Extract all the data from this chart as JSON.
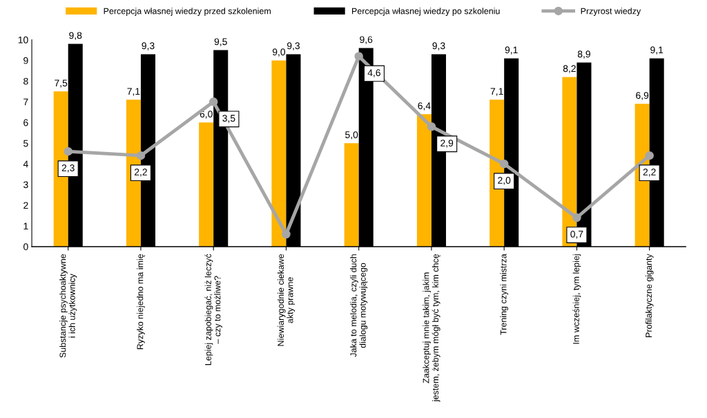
{
  "chart_data": {
    "type": "bar",
    "categories": [
      "Substancje psychoaktywne\ni ich użytkownicy",
      "Ryzyko niejedno ma imię",
      "Lepiej zapobiegać, niż leczyć\n– czy to możliwe?",
      "Niewiarygodnie ciekawe\nakty prawne",
      "Jaka to melodia, czyli duch\ndialogu motywującego",
      "Zaakceptuj mnie takim, jakim\njestem, żebym mógł być tym, kim chcę",
      "Trening czyni mistrza",
      "Im wcześniej, tym lepiej",
      "Profilaktyczne giganty"
    ],
    "series": [
      {
        "name": "Percepcja własnej wiedzy przed szkoleniem",
        "color": "#ffb400",
        "values": [
          7.5,
          7.1,
          6.0,
          9.0,
          5.0,
          6.4,
          7.1,
          8.2,
          6.9
        ],
        "value_labels": [
          "7,5",
          "7,1",
          "6,0",
          "9,0",
          "5,0",
          "6,4",
          "7,1",
          "8,2",
          "6,9"
        ]
      },
      {
        "name": "Percepcja własnej wiedzy po szkoleniu",
        "color": "#000000",
        "values": [
          9.8,
          9.3,
          9.5,
          9.3,
          9.6,
          9.3,
          9.1,
          8.9,
          9.1
        ],
        "value_labels": [
          "9,8",
          "9,3",
          "9,5",
          "9,3",
          "9,6",
          "9,3",
          "9,1",
          "8,9",
          "9,1"
        ]
      },
      {
        "name": "Przyrost wiedzy",
        "type": "line",
        "axis": "y2",
        "color": "#a6a6a6",
        "marker": "circle",
        "line_style": "solid",
        "values": [
          2.3,
          2.2,
          3.5,
          0.3,
          4.6,
          2.9,
          2.0,
          0.7,
          2.2
        ],
        "value_labels": [
          "2,3",
          "2,2",
          "3,5",
          null,
          "4,6",
          "2,9",
          "2,0",
          "0,7",
          "2,2"
        ]
      }
    ],
    "ylim": [
      0,
      10
    ],
    "yticks": [
      0,
      1,
      2,
      3,
      4,
      5,
      6,
      7,
      8,
      9,
      10
    ],
    "y2lim": [
      0,
      5
    ],
    "tick_labels": "xy",
    "grid": false,
    "legend": "top"
  }
}
